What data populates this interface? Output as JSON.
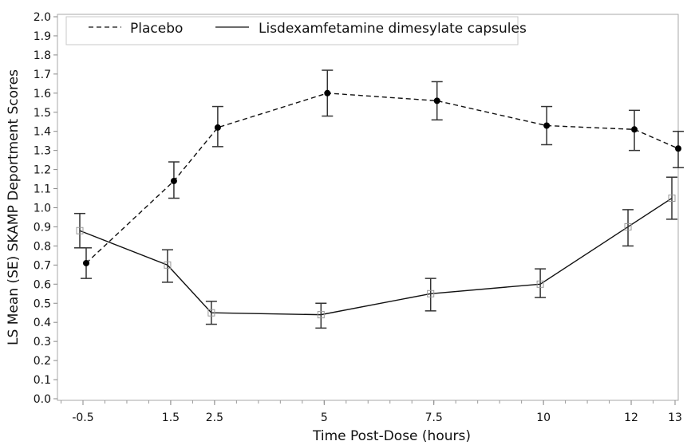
{
  "chart_data": {
    "type": "line",
    "title": "",
    "xlabel": "Time Post-Dose (hours)",
    "ylabel": "LS Mean (SE) SKAMP Deportment Scores",
    "x": [
      -0.5,
      1.5,
      2.5,
      5,
      7.5,
      10,
      12,
      13
    ],
    "x_tick_labels": [
      "-0.5",
      "1.5",
      "2.5",
      "5",
      "7.5",
      "10",
      "12",
      "13"
    ],
    "xlim": [
      -1.1,
      13.05
    ],
    "ylim": [
      0.0,
      2.0
    ],
    "y_ticks": [
      0.0,
      0.1,
      0.2,
      0.3,
      0.4,
      0.5,
      0.6,
      0.7,
      0.8,
      0.9,
      1.0,
      1.1,
      1.2,
      1.3,
      1.4,
      1.5,
      1.6,
      1.7,
      1.8,
      1.9,
      2.0
    ],
    "y_tick_labels": [
      "0.0",
      "0.1",
      "0.2",
      "0.3",
      "0.4",
      "0.5",
      "0.6",
      "0.7",
      "0.8",
      "0.9",
      "1.0",
      "1.1",
      "1.2",
      "1.3",
      "1.4",
      "1.5",
      "1.6",
      "1.7",
      "1.8",
      "1.9",
      "2.0"
    ],
    "grid": false,
    "legend_position": "top",
    "series": [
      {
        "name": "Placebo",
        "line_style": "dashed",
        "marker": "filled-circle",
        "color": "#111111",
        "values": [
          0.71,
          1.14,
          1.42,
          1.6,
          1.56,
          1.43,
          1.41,
          1.31
        ],
        "se_lower": [
          0.63,
          1.05,
          1.32,
          1.48,
          1.46,
          1.33,
          1.3,
          1.21
        ],
        "se_upper": [
          0.79,
          1.24,
          1.53,
          1.72,
          1.66,
          1.53,
          1.51,
          1.4
        ]
      },
      {
        "name": "Lisdexamfetamine dimesylate capsules",
        "line_style": "solid",
        "marker": "open-square",
        "color": "#111111",
        "values": [
          0.88,
          0.7,
          0.45,
          0.44,
          0.55,
          0.6,
          0.9,
          1.05
        ],
        "se_lower": [
          0.79,
          0.61,
          0.39,
          0.37,
          0.46,
          0.53,
          0.8,
          0.94
        ],
        "se_upper": [
          0.97,
          0.78,
          0.51,
          0.5,
          0.63,
          0.68,
          0.99,
          1.16
        ]
      }
    ]
  }
}
